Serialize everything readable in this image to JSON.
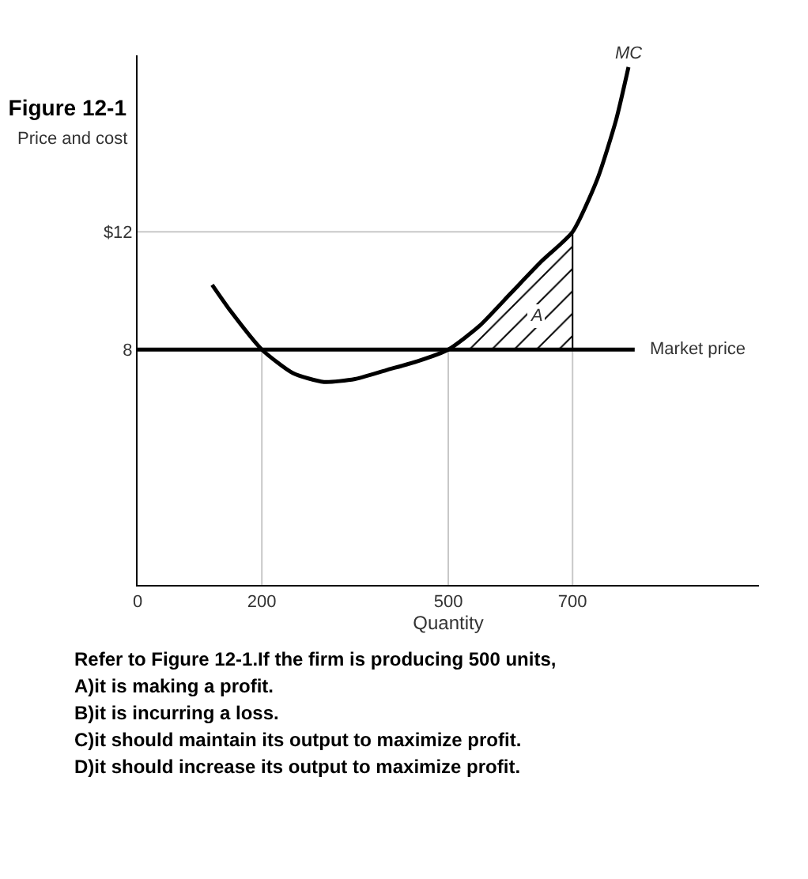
{
  "chart_data": {
    "type": "line",
    "title": "Figure 12-1",
    "xlabel": "Quantity",
    "ylabel": "Price and cost",
    "xlim": [
      0,
      1000
    ],
    "ylim": [
      0,
      18
    ],
    "xticks": [
      0,
      200,
      500,
      700
    ],
    "yticks": [
      8,
      {
        "value": 12,
        "label": "$12"
      }
    ],
    "series": [
      {
        "color": "#c8c8c8",
        "x": [
          200,
          200
        ],
        "values": [
          0,
          8
        ]
      },
      {
        "color": "#c8c8c8",
        "x": [
          500,
          500
        ],
        "values": [
          0,
          8
        ]
      },
      {
        "color": "#c8c8c8",
        "x": [
          700,
          700
        ],
        "values": [
          0,
          12
        ]
      },
      {
        "color": "#c8c8c8",
        "x": [
          0,
          700
        ],
        "values": [
          12,
          12
        ]
      },
      {
        "type": "area",
        "name": "A",
        "color": "#000000",
        "x": [
          500,
          550,
          600,
          650,
          700
        ],
        "values": [
          8,
          8.8,
          9.9,
          11.0,
          12
        ]
      },
      {
        "color": "#000000",
        "x": [
          120,
          150,
          200,
          250,
          300,
          350,
          400,
          450,
          500,
          550,
          600,
          650,
          700,
          740,
          770,
          790
        ],
        "values": [
          10.2,
          9.3,
          8,
          7.2,
          6.9,
          7.0,
          7.3,
          7.6,
          8,
          8.8,
          9.9,
          11.0,
          12,
          13.8,
          15.8,
          17.6
        ]
      }
    ],
    "ref_lines": [
      {
        "axis": "y",
        "value": 8,
        "label": "Market price",
        "color": "#000000"
      }
    ],
    "annotations": [
      {
        "text": "MC",
        "x": 790,
        "y": 17.6
      },
      "Refer to Figure 12-1.If the firm is producing 500 units,",
      "A)it is making a profit.",
      "B)it is incurring a loss.",
      "C)it should maintain its output to maximize profit.",
      "D)it should increase its output to maximize profit."
    ]
  }
}
